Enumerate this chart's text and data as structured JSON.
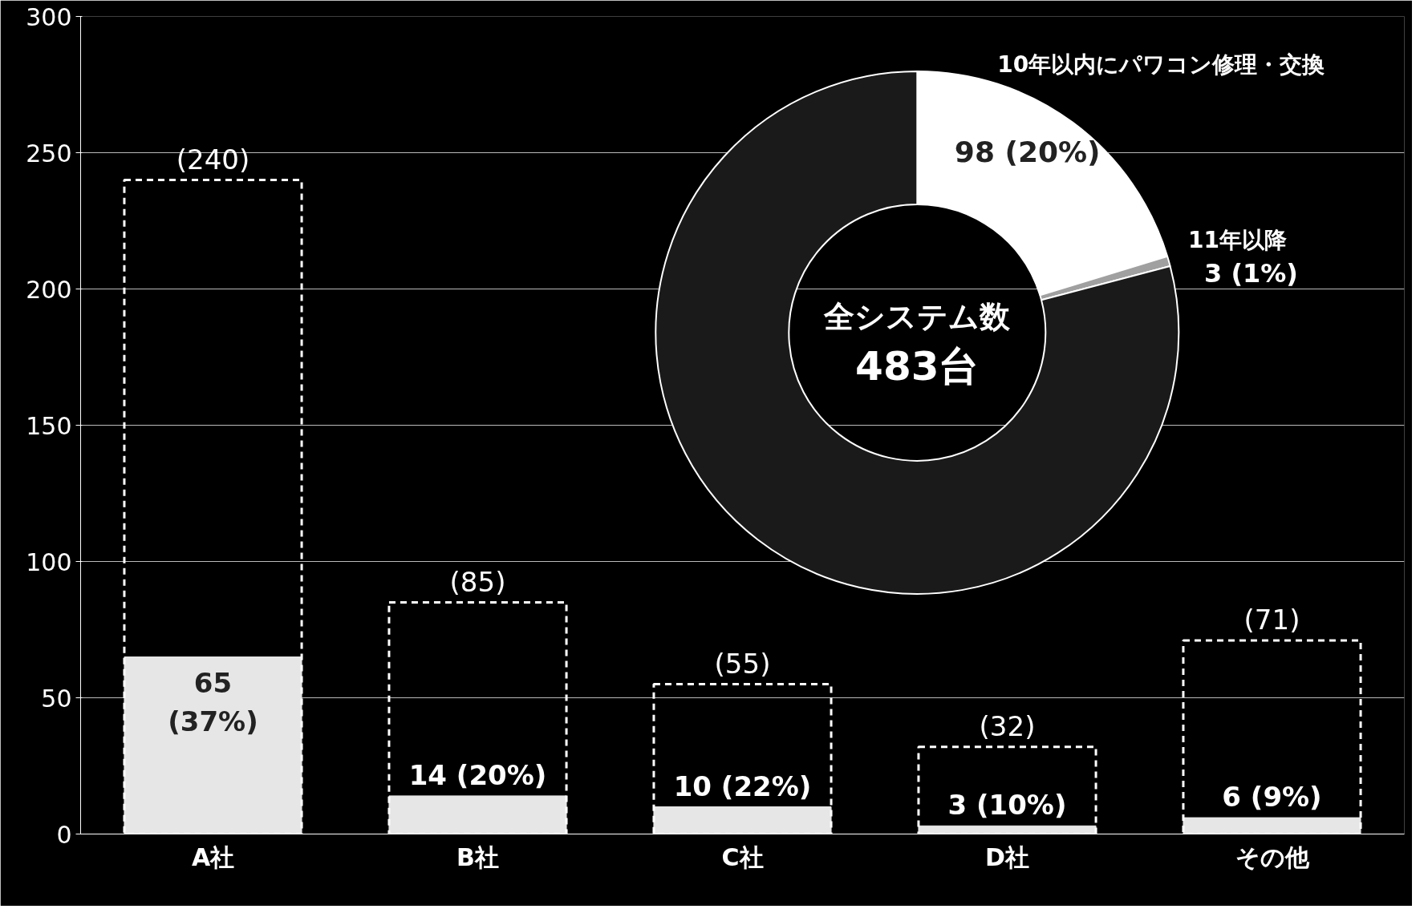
{
  "chart_data": [
    {
      "type": "bar",
      "categories": [
        "A社",
        "B社",
        "C社",
        "D社",
        "その他"
      ],
      "series": [
        {
          "color": "#e6e6e6",
          "values": [
            65,
            14,
            10,
            3,
            6
          ],
          "value_labels": [
            "65\n(37%)",
            "14 (20%)",
            "10 (22%)",
            "3 (10%)",
            "6 (9%)"
          ]
        },
        {
          "color": "#ffffff",
          "line_style": "dashed",
          "values": [
            240,
            85,
            55,
            32,
            71
          ],
          "value_labels": [
            "(240)",
            "(85)",
            "(55)",
            "(32)",
            "(71)"
          ]
        }
      ],
      "ylim": [
        0,
        300
      ],
      "yticks": [
        0,
        50,
        100,
        150,
        200,
        250,
        300
      ],
      "grid": "y"
    },
    {
      "type": "donut",
      "categories": [
        "10年以内にパワコン修理・交換",
        "11年以降",
        null
      ],
      "values": [
        98,
        3,
        382
      ],
      "colors": [
        "#ffffff",
        "#a0a0a0",
        "#1a1a1a"
      ],
      "value_labels": [
        "98 (20%)",
        "3 (1%)",
        null
      ],
      "annotations": [
        "全システム数",
        "483台"
      ]
    }
  ]
}
